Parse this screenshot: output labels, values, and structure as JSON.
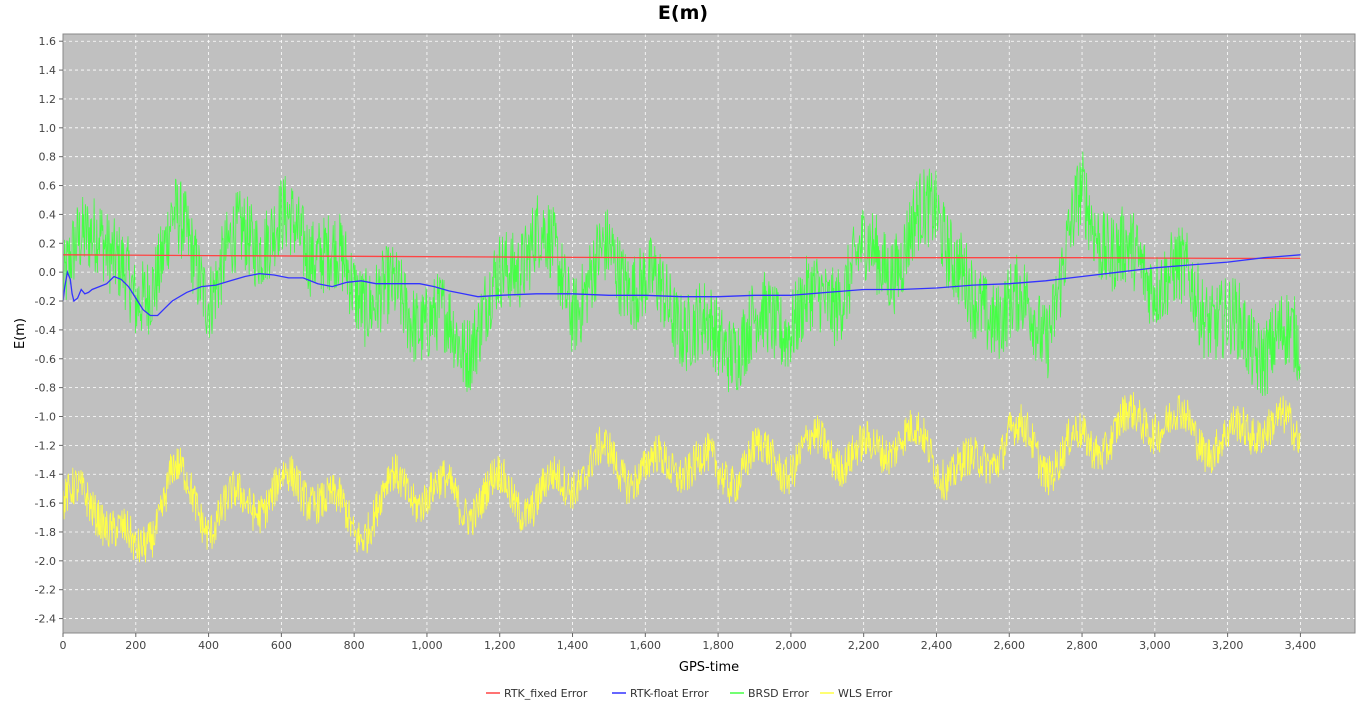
{
  "chart_data": {
    "type": "line",
    "title": "E(m)",
    "xlabel": "GPS-time",
    "ylabel": "E(m)",
    "xlim": [
      0,
      3550
    ],
    "ylim": [
      -2.5,
      1.65
    ],
    "xticks": [
      0,
      200,
      400,
      600,
      800,
      1000,
      1200,
      1400,
      1600,
      1800,
      2000,
      2200,
      2400,
      2600,
      2800,
      3000,
      3200,
      3400
    ],
    "xtick_labels": [
      "0",
      "200",
      "400",
      "600",
      "800",
      "1,000",
      "1,200",
      "1,400",
      "1,600",
      "1,800",
      "2,000",
      "2,200",
      "2,400",
      "2,600",
      "2,800",
      "3,000",
      "3,200",
      "3,400"
    ],
    "yticks": [
      1.6,
      1.4,
      1.2,
      1.0,
      0.8,
      0.6,
      0.4,
      0.2,
      0.0,
      -0.2,
      -0.4,
      -0.6,
      -0.8,
      -1.0,
      -1.2,
      -1.4,
      -1.6,
      -1.8,
      -2.0,
      -2.2,
      -2.4
    ],
    "ytick_labels": [
      "1.6",
      "1.4",
      "1.2",
      "1.0",
      "0.8",
      "0.6",
      "0.4",
      "0.2",
      "0.0",
      "-0.2",
      "-0.4",
      "-0.6",
      "-0.8",
      "-1.0",
      "-1.2",
      "-1.4",
      "-1.6",
      "-1.8",
      "-2.0",
      "-2.2",
      "-2.4"
    ],
    "grid": true,
    "legend_position": "bottom-center",
    "background_color": "#c0c0c0",
    "series": [
      {
        "name": "RTK_fixed Error",
        "color": "#ff4444",
        "x": [
          0,
          400,
          800,
          1200,
          1600,
          2000,
          2400,
          2800,
          3200,
          3400
        ],
        "y": [
          0.12,
          0.115,
          0.11,
          0.105,
          0.1,
          0.1,
          0.1,
          0.1,
          0.095,
          0.095
        ]
      },
      {
        "name": "RTK-float Error",
        "color": "#3333ff",
        "x": [
          0,
          5,
          12,
          20,
          25,
          30,
          40,
          50,
          60,
          70,
          80,
          100,
          120,
          140,
          160,
          180,
          200,
          220,
          240,
          260,
          280,
          300,
          340,
          380,
          420,
          460,
          500,
          540,
          580,
          620,
          660,
          700,
          740,
          780,
          820,
          860,
          900,
          940,
          980,
          1020,
          1060,
          1100,
          1140,
          1200,
          1300,
          1400,
          1500,
          1600,
          1700,
          1800,
          1900,
          2000,
          2100,
          2200,
          2300,
          2400,
          2500,
          2600,
          2700,
          2800,
          2900,
          3000,
          3100,
          3200,
          3300,
          3400
        ],
        "y": [
          -0.2,
          -0.1,
          0.0,
          -0.05,
          -0.15,
          -0.2,
          -0.18,
          -0.12,
          -0.15,
          -0.14,
          -0.12,
          -0.1,
          -0.08,
          -0.03,
          -0.05,
          -0.1,
          -0.18,
          -0.26,
          -0.3,
          -0.3,
          -0.25,
          -0.2,
          -0.14,
          -0.1,
          -0.09,
          -0.06,
          -0.03,
          -0.01,
          -0.02,
          -0.04,
          -0.04,
          -0.08,
          -0.1,
          -0.07,
          -0.06,
          -0.08,
          -0.08,
          -0.08,
          -0.08,
          -0.1,
          -0.13,
          -0.15,
          -0.17,
          -0.16,
          -0.15,
          -0.15,
          -0.16,
          -0.16,
          -0.17,
          -0.17,
          -0.16,
          -0.16,
          -0.14,
          -0.12,
          -0.12,
          -0.11,
          -0.09,
          -0.08,
          -0.06,
          -0.03,
          0.0,
          0.03,
          0.05,
          0.07,
          0.1,
          0.12
        ]
      },
      {
        "name": "BRSD Error",
        "color": "#44ff44",
        "x": [
          0,
          100,
          200,
          300,
          400,
          500,
          600,
          700,
          800,
          900,
          1000,
          1100,
          1200,
          1300,
          1400,
          1500,
          1600,
          1700,
          1800,
          1900,
          2000,
          2100,
          2200,
          2300,
          2400,
          2500,
          2600,
          2700,
          2800,
          2900,
          3000,
          3100,
          3200,
          3300,
          3400
        ],
        "y": [
          -0.1,
          0.4,
          -0.3,
          0.35,
          -0.1,
          0.25,
          0.3,
          0.2,
          -0.1,
          -0.2,
          -0.3,
          -0.5,
          -0.1,
          0.3,
          -0.2,
          0.1,
          -0.1,
          -0.3,
          -0.5,
          -0.4,
          -0.3,
          -0.2,
          0.1,
          0.1,
          0.5,
          -0.3,
          -0.2,
          -0.4,
          0.5,
          0.1,
          0.0,
          -0.1,
          -0.4,
          -0.5,
          -0.5
        ]
      },
      {
        "name": "WLS Error",
        "color": "#ffff44",
        "x": [
          0,
          100,
          200,
          300,
          400,
          500,
          600,
          700,
          800,
          900,
          1000,
          1100,
          1200,
          1300,
          1400,
          1500,
          1600,
          1700,
          1800,
          1900,
          2000,
          2100,
          2200,
          2300,
          2400,
          2500,
          2600,
          2700,
          2800,
          2900,
          3000,
          3100,
          3200,
          3300,
          3400
        ],
        "y": [
          -1.6,
          -1.6,
          -2.0,
          -1.4,
          -1.7,
          -1.6,
          -1.5,
          -1.5,
          -1.8,
          -1.5,
          -1.5,
          -1.6,
          -1.5,
          -1.6,
          -1.4,
          -1.3,
          -1.4,
          -1.3,
          -1.4,
          -1.3,
          -1.3,
          -1.2,
          -1.3,
          -1.1,
          -1.3,
          -1.4,
          -1.1,
          -1.3,
          -1.2,
          -1.1,
          -1.0,
          -1.1,
          -1.2,
          -1.0,
          -1.2
        ]
      }
    ]
  }
}
